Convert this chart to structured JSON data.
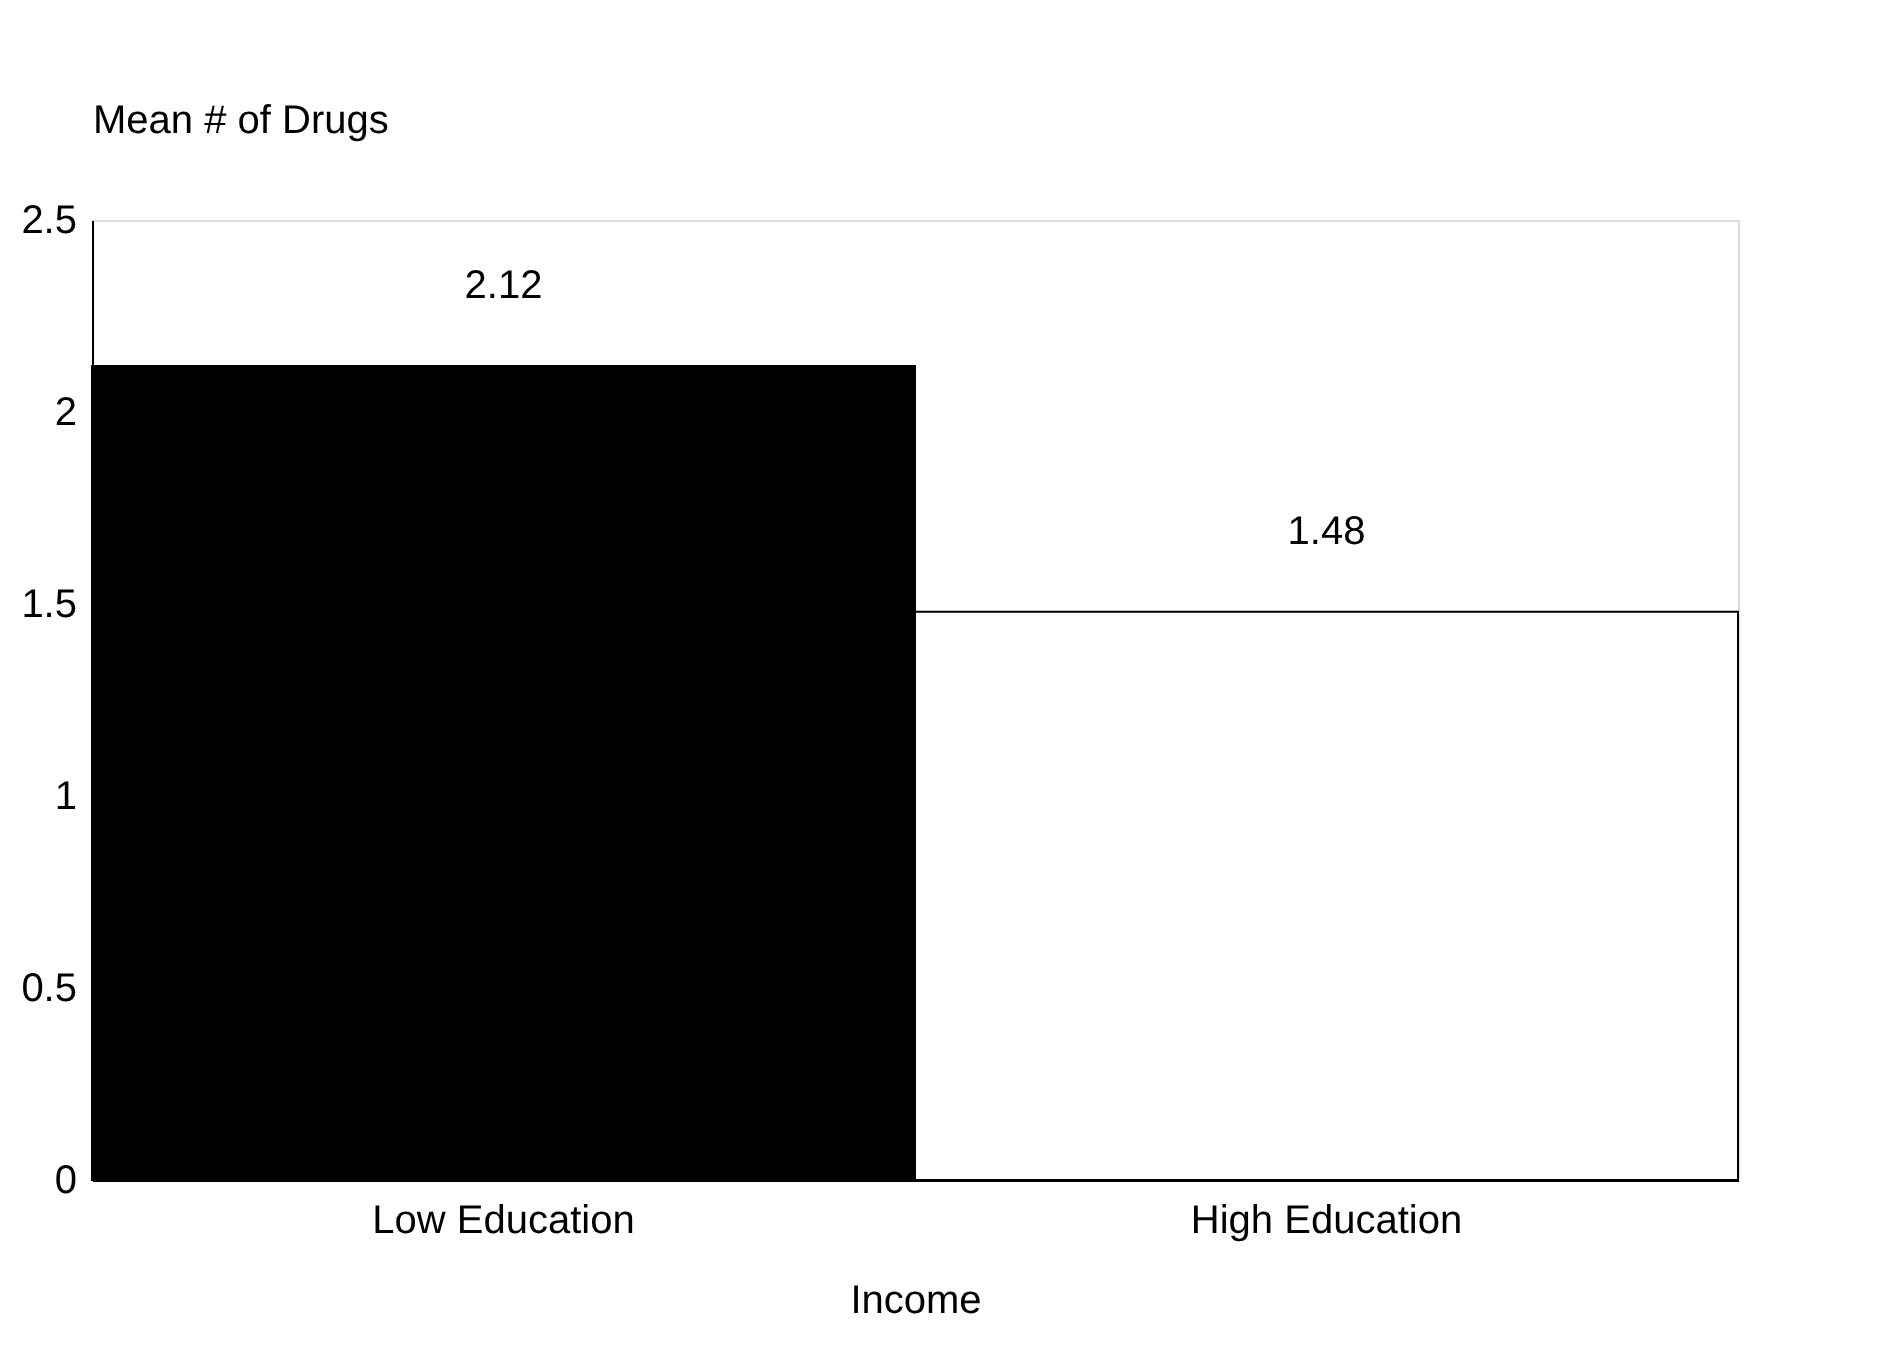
{
  "chart_data": {
    "type": "bar",
    "ylabel": "Mean # of Drugs",
    "xlabel": "Income",
    "categories": [
      "Low Education",
      "High Education"
    ],
    "values": [
      2.12,
      1.48
    ],
    "colors": [
      "#000000",
      "#ffffff"
    ],
    "ylim": [
      0,
      2.5
    ],
    "yticks": [
      0,
      0.5,
      1,
      1.5,
      2,
      2.5
    ],
    "grid": false,
    "data_labels": true
  }
}
